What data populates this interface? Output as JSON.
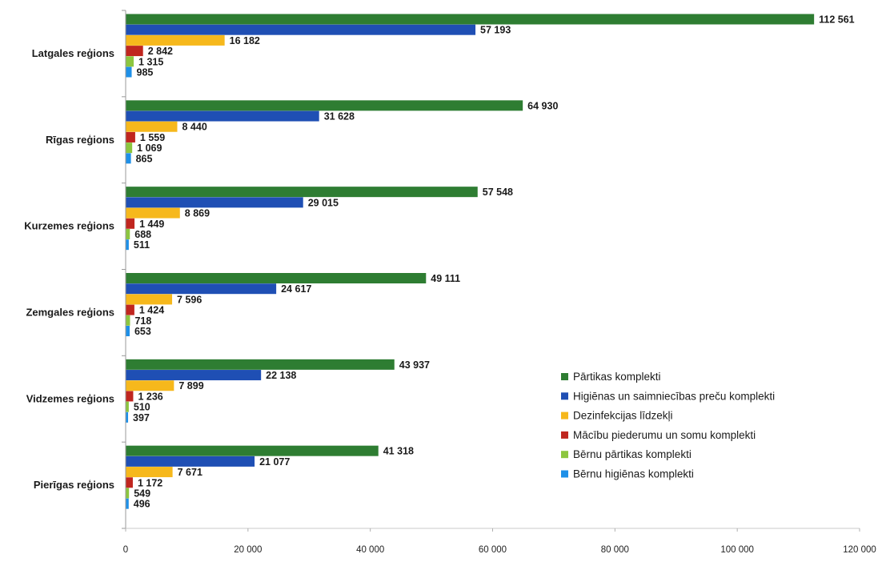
{
  "chart_data": {
    "type": "bar",
    "orientation": "horizontal",
    "categories": [
      "Latgales reģions",
      "Rīgas reģions",
      "Kurzemes reģions",
      "Zemgales reģions",
      "Vidzemes reģions",
      "Pierīgas reģions"
    ],
    "series": [
      {
        "name": "Pārtikas komplekti",
        "color": "#2e7d32",
        "values": [
          112561,
          64930,
          57548,
          49111,
          43937,
          41318
        ],
        "labels": [
          "112 561",
          "64 930",
          "57 548",
          "49 111",
          "43 937",
          "41 318"
        ]
      },
      {
        "name": "Higiēnas un saimniecības preču komplekti",
        "color": "#1f4fb4",
        "values": [
          57193,
          31628,
          29015,
          24617,
          22138,
          21077
        ],
        "labels": [
          "57 193",
          "31 628",
          "29 015",
          "24 617",
          "22 138",
          "21 077"
        ]
      },
      {
        "name": "Dezinfekcijas līdzekļi",
        "color": "#f6b81c",
        "values": [
          16182,
          8440,
          8869,
          7596,
          7899,
          7671
        ],
        "labels": [
          "16 182",
          "8 440",
          "8 869",
          "7 596",
          "7 899",
          "7 671"
        ]
      },
      {
        "name": "Mācību piederumu un somu komplekti",
        "color": "#c0261f",
        "values": [
          2842,
          1559,
          1449,
          1424,
          1236,
          1172
        ],
        "labels": [
          "2 842",
          "1 559",
          "1 449",
          "1 424",
          "1 236",
          "1 172"
        ]
      },
      {
        "name": "Bērnu pārtikas komplekti",
        "color": "#8cc63f",
        "values": [
          1315,
          1069,
          688,
          718,
          510,
          549
        ],
        "labels": [
          "1 315",
          "1 069",
          "688",
          "718",
          "510",
          "549"
        ]
      },
      {
        "name": "Bērnu higiēnas komplekti",
        "color": "#1e90e8",
        "values": [
          985,
          865,
          511,
          653,
          397,
          496
        ],
        "labels": [
          "985",
          "865",
          "511",
          "653",
          "397",
          "496"
        ]
      }
    ],
    "xlim": [
      0,
      120000
    ],
    "ticks": [
      0,
      20000,
      40000,
      60000,
      80000,
      100000,
      120000
    ],
    "tick_labels": [
      "0",
      "20 000",
      "40 000",
      "60 000",
      "80 000",
      "100 000",
      "120 000"
    ],
    "legend_position": "right",
    "grid": false
  }
}
